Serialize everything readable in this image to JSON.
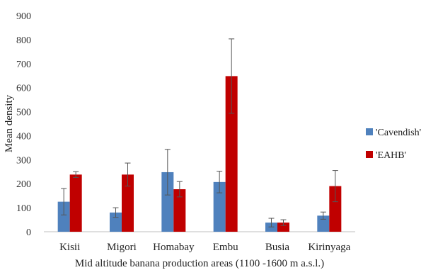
{
  "chart_data": {
    "type": "bar",
    "categories": [
      "Kisii",
      "Migori",
      "Homabay",
      "Embu",
      "Busia",
      "Kirinyaga"
    ],
    "series": [
      {
        "name": "'Cavendish'",
        "color": "#4F81BD",
        "values": [
          125,
          80,
          248,
          207,
          38,
          67
        ],
        "errors": [
          55,
          20,
          95,
          45,
          18,
          15
        ]
      },
      {
        "name": "'EAHB'",
        "color": "#C00000",
        "values": [
          238,
          238,
          177,
          648,
          38,
          190
        ],
        "errors": [
          12,
          48,
          32,
          155,
          12,
          65
        ]
      }
    ],
    "yticks": [
      0,
      100,
      200,
      300,
      400,
      500,
      600,
      700,
      800,
      900
    ],
    "ylim": [
      0,
      900
    ],
    "ylabel": "Mean density",
    "xlabel": "Mid altitude banana production areas (1100 -1600 m a.s.l.)",
    "legend_position": "right",
    "grid": false
  }
}
